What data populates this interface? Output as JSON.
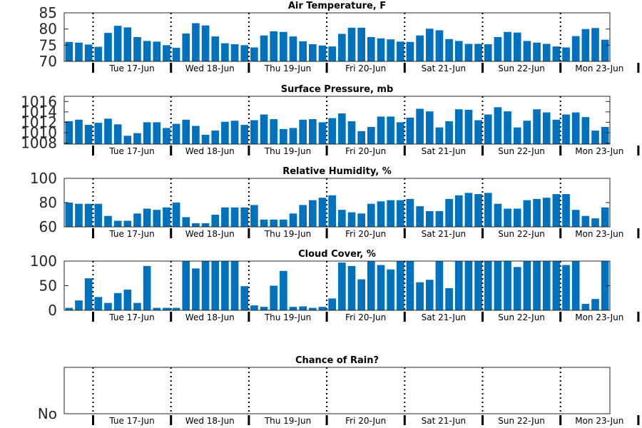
{
  "bar_color": "#0072BD",
  "x_tick_labels": [
    "Tue 17-Jun",
    "Wed 18-Jun",
    "Thu 19-Jun",
    "Fri 20-Jun",
    "Sat 21-Jun",
    "Sun 22-Jun",
    "Mon 23-Jun"
  ],
  "chart_data": [
    {
      "type": "bar",
      "title": "Air Temperature, F",
      "ylim": [
        70,
        85
      ],
      "yticks": [
        70,
        75,
        80,
        85
      ],
      "ytick_labels": [
        "70",
        "75",
        "80",
        "85"
      ],
      "values": [
        76.0,
        75.8,
        75.2,
        74.5,
        78.8,
        81.0,
        80.5,
        77.5,
        76.3,
        76.1,
        75.0,
        74.2,
        78.6,
        81.8,
        81.1,
        77.7,
        75.6,
        75.3,
        75.0,
        74.3,
        78.0,
        79.3,
        79.1,
        77.7,
        76.2,
        75.3,
        74.9,
        74.6,
        78.5,
        80.4,
        80.4,
        77.5,
        77.1,
        76.8,
        76.1,
        76.0,
        78.0,
        80.1,
        79.6,
        76.9,
        76.3,
        75.4,
        75.4,
        75.3,
        77.5,
        79.1,
        78.9,
        76.3,
        75.8,
        75.4,
        74.6,
        74.3,
        77.8,
        80.0,
        80.3,
        76.7
      ]
    },
    {
      "type": "bar",
      "title": "Surface Pressure, mb",
      "ylim": [
        1007.8,
        1017.0
      ],
      "yticks": [
        1008,
        1010,
        1012,
        1014,
        1016
      ],
      "ytick_labels": [
        "1008",
        "1010",
        "1012",
        "1014",
        "1016"
      ],
      "values": [
        1012.2,
        1012.5,
        1011.5,
        1011.9,
        1012.7,
        1011.6,
        1009.4,
        1009.9,
        1012.0,
        1012.0,
        1010.9,
        1011.7,
        1012.5,
        1011.3,
        1009.6,
        1010.4,
        1012.1,
        1012.3,
        1011.5,
        1012.4,
        1013.5,
        1012.6,
        1010.7,
        1010.9,
        1012.5,
        1012.6,
        1012.0,
        1012.8,
        1013.7,
        1012.2,
        1010.3,
        1011.1,
        1013.1,
        1013.1,
        1012.0,
        1012.9,
        1014.6,
        1014.1,
        1011.0,
        1012.2,
        1014.5,
        1014.4,
        1012.4,
        1013.5,
        1014.9,
        1014.1,
        1011.0,
        1012.3,
        1014.5,
        1013.9,
        1012.5,
        1013.5,
        1013.9,
        1013.0,
        1010.4,
        1011.1
      ]
    },
    {
      "type": "bar",
      "title": "Relative Humidity, %",
      "ylim": [
        60,
        100
      ],
      "yticks": [
        60,
        80,
        100
      ],
      "ytick_labels": [
        "60",
        "80",
        "100"
      ],
      "values": [
        80,
        79,
        79,
        79,
        69,
        65,
        65,
        71,
        75,
        74,
        76,
        80,
        68,
        63,
        63,
        70,
        76,
        76,
        76,
        78,
        66,
        66,
        66,
        71,
        78,
        82,
        84,
        86,
        74,
        72,
        71,
        79,
        81,
        82,
        82,
        83,
        77,
        73,
        73,
        83,
        86,
        88,
        87,
        88,
        79,
        75,
        75,
        82,
        83,
        84,
        87,
        87,
        74,
        69,
        67,
        76
      ]
    },
    {
      "type": "bar",
      "title": "Cloud Cover, %",
      "ylim": [
        0,
        100
      ],
      "yticks": [
        0,
        50,
        100
      ],
      "ytick_labels": [
        "0",
        "50",
        "100"
      ],
      "values": [
        5,
        20,
        65,
        27,
        15,
        35,
        42,
        15,
        90,
        5,
        5,
        5,
        100,
        85,
        100,
        100,
        100,
        100,
        49,
        10,
        7,
        50,
        80,
        7,
        8,
        5,
        7,
        24,
        97,
        90,
        63,
        100,
        92,
        83,
        100,
        100,
        57,
        62,
        100,
        45,
        100,
        100,
        100,
        100,
        100,
        100,
        88,
        100,
        100,
        100,
        100,
        92,
        100,
        13,
        23,
        100
      ]
    },
    {
      "type": "bar",
      "title": "Chance of Rain?",
      "ylim": [
        0,
        1
      ],
      "yticks": [
        0
      ],
      "ytick_labels": [
        "No"
      ],
      "values": [
        0,
        0,
        0,
        0,
        0,
        0,
        0,
        0,
        0,
        0,
        0,
        0,
        0,
        0,
        0,
        0,
        0,
        0,
        0,
        0,
        0,
        0,
        0,
        0,
        0,
        0,
        0,
        0,
        0,
        0,
        0,
        0,
        0,
        0,
        0,
        0,
        0,
        0,
        0,
        0,
        0,
        0,
        0,
        0,
        0,
        0,
        0,
        0,
        0,
        0,
        0,
        0,
        0,
        0,
        0,
        0
      ]
    }
  ]
}
